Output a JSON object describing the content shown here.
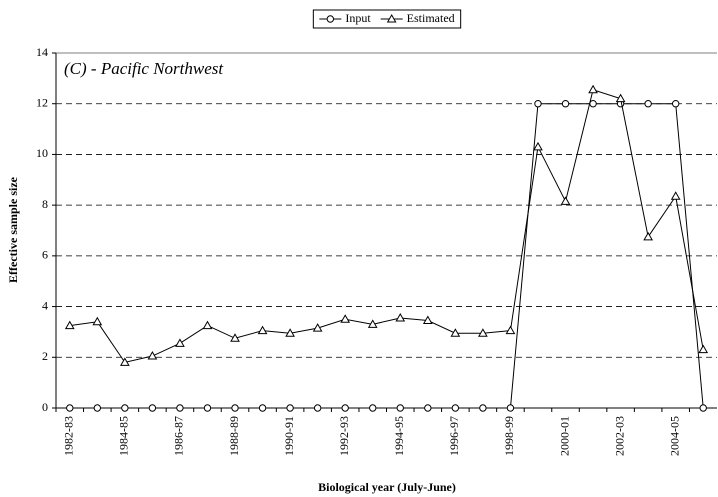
{
  "chart_data": {
    "type": "line",
    "title": "(C) - Pacific Northwest",
    "xlabel": "Biological year (July-June)",
    "ylabel": "Effective sample size",
    "categories": [
      "1982-83",
      null,
      "1984-85",
      null,
      "1986-87",
      null,
      "1988-89",
      null,
      "1990-91",
      null,
      "1992-93",
      null,
      "1994-95",
      null,
      "1996-97",
      null,
      "1998-99",
      null,
      "2000-01",
      null,
      "2002-03",
      null,
      "2004-05",
      null
    ],
    "series": [
      {
        "name": "Input",
        "color": "#000000",
        "marker": "circle",
        "values": [
          0,
          0,
          0,
          0,
          0,
          0,
          0,
          0,
          0,
          0,
          0,
          0,
          0,
          0,
          0,
          0,
          0,
          12,
          12,
          12,
          12,
          12,
          12,
          0
        ]
      },
      {
        "name": "Estimated",
        "color": "#000000",
        "marker": "triangle",
        "values": [
          3.25,
          3.4,
          1.8,
          2.05,
          2.55,
          3.25,
          2.75,
          3.05,
          2.95,
          3.15,
          3.5,
          3.3,
          3.55,
          3.45,
          2.95,
          2.95,
          3.05,
          10.3,
          8.15,
          12.55,
          12.2,
          6.75,
          8.35,
          2.3
        ]
      }
    ],
    "ylim": [
      0,
      14
    ],
    "yticks": [
      0,
      2,
      4,
      6,
      8,
      10,
      12,
      14
    ],
    "grid": true,
    "legend": "top"
  }
}
